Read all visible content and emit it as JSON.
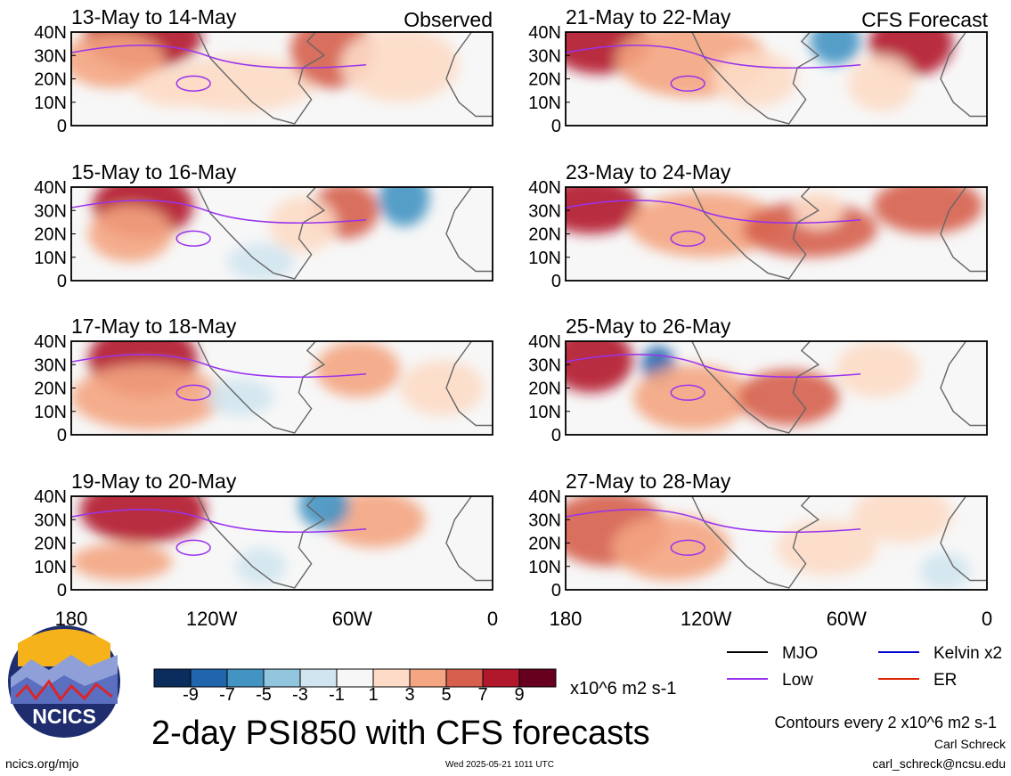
{
  "title": "2-day PSI850 with CFS forecasts",
  "column_headers": {
    "left": "Observed",
    "right": "CFS Forecast"
  },
  "chart_data": {
    "type": "heatmap",
    "variable": "PSI850",
    "units": "x10^6 m2 s-1",
    "contour_note": "Contours every 2 x10^6 m2 s-1",
    "colorbar": {
      "ticks": [
        "-9",
        "-7",
        "-5",
        "-3",
        "-1",
        "1",
        "3",
        "5",
        "7",
        "9"
      ],
      "colors": [
        "#0a2d5e",
        "#2166ac",
        "#4393c3",
        "#92c5de",
        "#d1e5f0",
        "#f7f7f7",
        "#fddbc7",
        "#f4a582",
        "#d6604d",
        "#b2182b",
        "#67001f"
      ]
    },
    "xaxis": {
      "ticks": [
        "180",
        "120W",
        "60W",
        "0"
      ]
    },
    "yaxis": {
      "ticks": [
        "40N",
        "30N",
        "20N",
        "10N",
        "0"
      ]
    },
    "legend": [
      {
        "label": "MJO",
        "color": "#000000"
      },
      {
        "label": "Kelvin x2",
        "color": "#0000cc"
      },
      {
        "label": "Low",
        "color": "#9933ee"
      },
      {
        "label": "ER",
        "color": "#dd2200"
      }
    ],
    "panels": [
      {
        "title": "13-May to 14-May",
        "group": "Observed"
      },
      {
        "title": "21-May to 22-May",
        "group": "CFS Forecast"
      },
      {
        "title": "15-May to 16-May",
        "group": "Observed"
      },
      {
        "title": "23-May to 24-May",
        "group": "CFS Forecast"
      },
      {
        "title": "17-May to 18-May",
        "group": "Observed"
      },
      {
        "title": "25-May to 26-May",
        "group": "CFS Forecast"
      },
      {
        "title": "19-May to 20-May",
        "group": "Observed"
      },
      {
        "title": "27-May to 28-May",
        "group": "CFS Forecast"
      }
    ]
  },
  "footer": {
    "logo_text": "NCICS",
    "url": "ncics.org/mjo",
    "timestamp": "Wed 2025-05-21 1011 UTC",
    "author": "Carl Schreck",
    "email": "carl_schreck@ncsu.edu"
  }
}
